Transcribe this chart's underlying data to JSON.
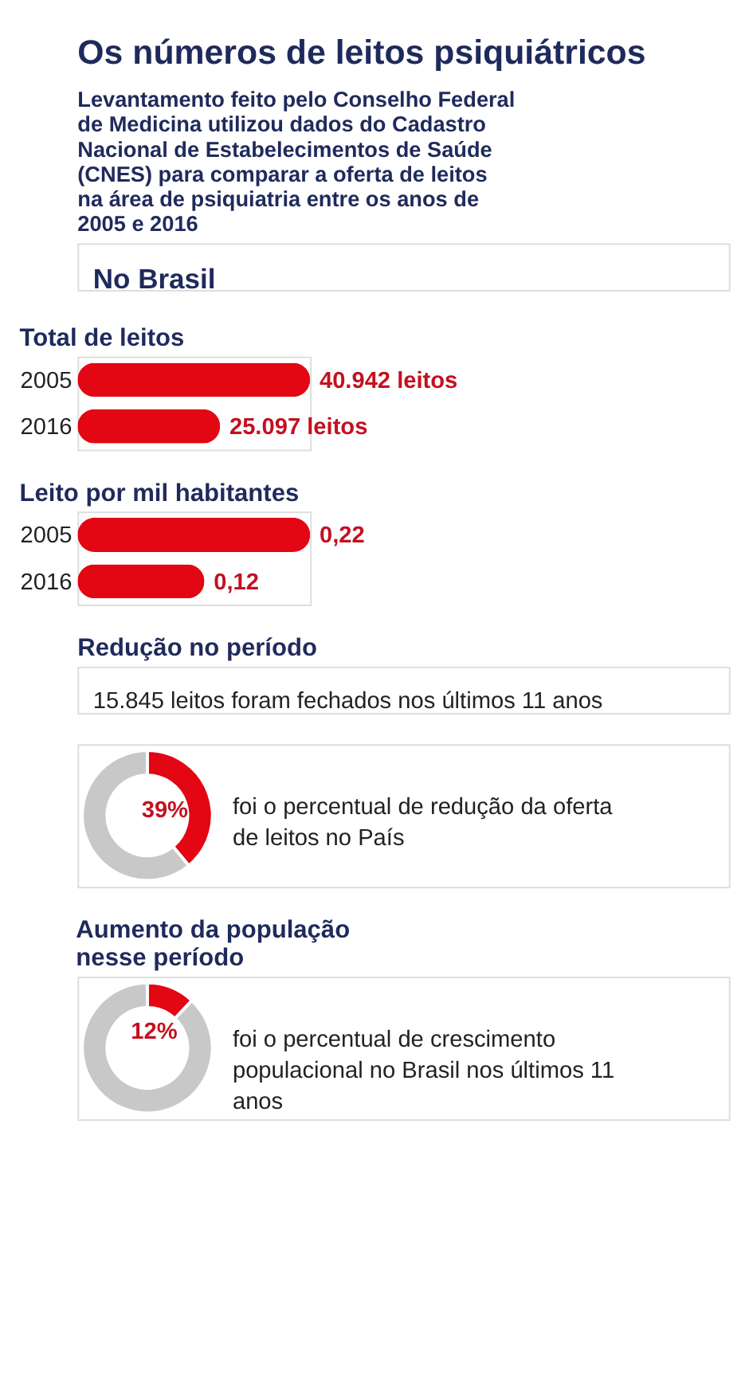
{
  "chart_data": [
    {
      "type": "other",
      "title": "Os números de leitos psiquiátricos",
      "subtitle": "Levantamento feito pelo Conselho Federal de Medicina utilizou dados do Cadastro Nacional de Estabelecimentos de Saúde (CNES) para comparar a oferta de leitos na área de psiquiatria entre os anos de 2005 e 2016",
      "annotations": [
        "No Brasil"
      ]
    },
    {
      "type": "bar",
      "orientation": "horizontal",
      "title": "Total de leitos",
      "categories": [
        "2005",
        "2016"
      ],
      "values": [
        40942,
        25097
      ],
      "value_labels": [
        "40.942 leitos",
        "25.097 leitos"
      ],
      "color": "#e30613"
    },
    {
      "type": "bar",
      "orientation": "horizontal",
      "title": "Leito por mil habitantes",
      "categories": [
        "2005",
        "2016"
      ],
      "values": [
        0.22,
        0.12
      ],
      "value_labels": [
        "0,22",
        "0,12"
      ],
      "color": "#e30613"
    },
    {
      "type": "other",
      "title": "Redução no período",
      "annotations": [
        "15.845 leitos foram fechados nos últimos 11 anos"
      ]
    },
    {
      "type": "donut",
      "categories": [
        null,
        null
      ],
      "values": [
        39,
        61
      ],
      "colors": [
        "#e30613",
        "#c8c8c8"
      ],
      "value_labels": [
        "39%",
        null
      ],
      "annotations": [
        "foi o percentual de redução da oferta de leitos no País"
      ]
    },
    {
      "type": "donut",
      "title": "Aumento da população nesse período",
      "categories": [
        null,
        null
      ],
      "values": [
        12,
        88
      ],
      "colors": [
        "#e30613",
        "#c8c8c8"
      ],
      "value_labels": [
        "12%",
        null
      ],
      "annotations": [
        "foi o percentual de crescimento populacional no Brasil nos últimos 11 anos"
      ]
    }
  ]
}
